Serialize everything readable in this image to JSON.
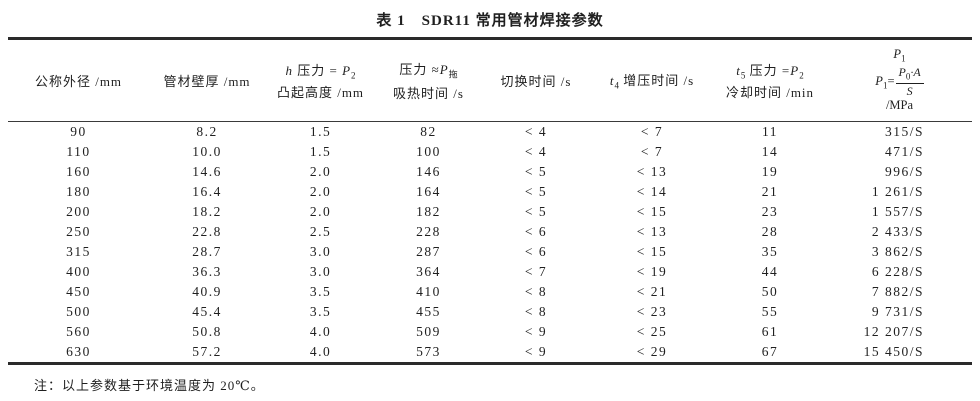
{
  "colors": {
    "ink": "#1f1f1f",
    "rule": "#2a2a2a",
    "background": "#ffffff"
  },
  "title": "表 1　SDR11 常用管材焊接参数",
  "table": {
    "header": {
      "c1": "公称外径 /mm",
      "c2": "管材壁厚 /mm",
      "c3": {
        "v1": "h",
        "t1": " 压力 = ",
        "v2": "P",
        "s2": "2",
        "line2": "凸起高度 /mm"
      },
      "c4": {
        "t1": "压力 ≈",
        "v1": "P",
        "s1": "拖",
        "line2": "吸热时间 /s"
      },
      "c5": "切换时间 /s",
      "c6": {
        "v1": "t",
        "s1": "4",
        "t1": " 增压时间 /s"
      },
      "c7": {
        "v1": "t",
        "s1": "5",
        "t1": " 压力 =",
        "v2": "P",
        "s2": "2",
        "line2": "冷却时间 /min"
      },
      "c8": {
        "top_v": "P",
        "top_s": "1",
        "l_v": "P",
        "l_s": "1",
        "eq": "=",
        "num_v": "P",
        "num_s": "0",
        "num_t": "·A",
        "den": "S",
        "unit": "/MPa"
      }
    },
    "rows": [
      [
        "90",
        "8.2",
        "1.5",
        "82",
        "< 4",
        "< 7",
        "11",
        "315/S"
      ],
      [
        "110",
        "10.0",
        "1.5",
        "100",
        "< 4",
        "< 7",
        "14",
        "471/S"
      ],
      [
        "160",
        "14.6",
        "2.0",
        "146",
        "< 5",
        "< 13",
        "19",
        "996/S"
      ],
      [
        "180",
        "16.4",
        "2.0",
        "164",
        "< 5",
        "< 14",
        "21",
        "1 261/S"
      ],
      [
        "200",
        "18.2",
        "2.0",
        "182",
        "< 5",
        "< 15",
        "23",
        "1 557/S"
      ],
      [
        "250",
        "22.8",
        "2.5",
        "228",
        "< 6",
        "< 13",
        "28",
        "2 433/S"
      ],
      [
        "315",
        "28.7",
        "3.0",
        "287",
        "< 6",
        "< 15",
        "35",
        "3 862/S"
      ],
      [
        "400",
        "36.3",
        "3.0",
        "364",
        "< 7",
        "< 19",
        "44",
        "6 228/S"
      ],
      [
        "450",
        "40.9",
        "3.5",
        "410",
        "< 8",
        "< 21",
        "50",
        "7 882/S"
      ],
      [
        "500",
        "45.4",
        "3.5",
        "455",
        "< 8",
        "< 23",
        "55",
        "9 731/S"
      ],
      [
        "560",
        "50.8",
        "4.0",
        "509",
        "< 9",
        "< 25",
        "61",
        "12 207/S"
      ],
      [
        "630",
        "57.2",
        "4.0",
        "573",
        "< 9",
        "< 29",
        "67",
        "15 450/S"
      ]
    ]
  },
  "note": "注：以上参数基于环境温度为 20℃。"
}
